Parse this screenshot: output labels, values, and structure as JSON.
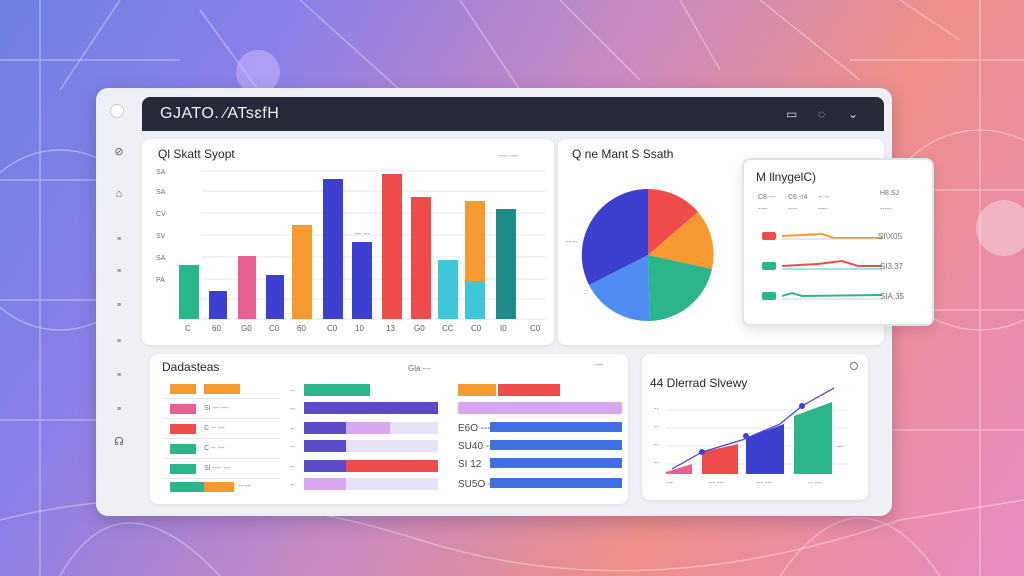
{
  "window": {
    "title": "GJATO. ∕ATsɛfH",
    "controls": [
      "▭",
      "◌",
      "⌄"
    ]
  },
  "sidebar": {
    "icons": [
      "compass-icon",
      "chart-icon",
      "list-icon",
      "list-icon",
      "list-icon",
      "list-icon",
      "list-icon",
      "list-icon",
      "list-icon",
      "support-icon"
    ]
  },
  "bar_card": {
    "title": "Ql Skatt Syopt",
    "header_tag": "---- ----",
    "mid_tag": "--- ---",
    "y_labels": [
      "SA",
      "SA",
      "CV",
      "SV",
      "SA",
      "PA"
    ],
    "colors": {
      "teal": "#2bb58a",
      "indigo": "#3d3fd1",
      "pink": "#e85f93",
      "orange": "#f59a30",
      "red": "#ee4b4b",
      "blue": "#4f8ef0",
      "cyan": "#3fc6d9",
      "darkteal": "#1f8a8a"
    }
  },
  "pie_card": {
    "title": "Q ne Mant S Ssath",
    "side_tag": "-- --",
    "tag": "::"
  },
  "legend_card": {
    "title": "M llnygelC)",
    "headers": [
      "C8 ---",
      "C6 -r4",
      "-- --",
      "H8 SJ"
    ],
    "subheaders": [
      "----",
      "----",
      "----",
      "-----"
    ],
    "rows": [
      {
        "value": "SI\\X05",
        "color": "#f59a30"
      },
      {
        "value": "SI3.37",
        "color": "#ee4b4b"
      },
      {
        "value": "SIA,35",
        "color": "#2bb58a"
      }
    ]
  },
  "table_card": {
    "title": "Dadasteas",
    "center_tag": "Gla ---",
    "col1": [
      "--- ---",
      "SI --- ---",
      "C -- ---",
      "Sl ---- ---",
      "-- ---"
    ],
    "col3": [
      "E6O ----",
      "SU40 ---",
      "SI 12",
      "SU5O ----"
    ]
  },
  "trend_card": {
    "title": "44 Dlerrad Slvewy",
    "x_labels": [
      "---",
      "--- ---",
      "--- ---",
      "-- ---"
    ],
    "y_labels": [
      "--",
      "--",
      "--",
      "--",
      "--"
    ]
  }
}
